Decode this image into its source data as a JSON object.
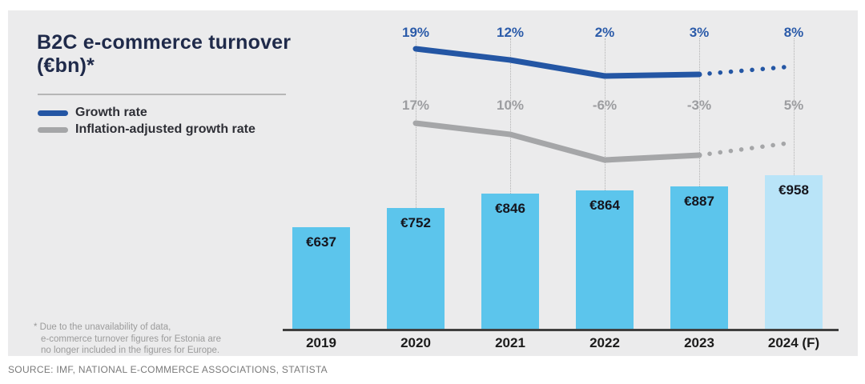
{
  "title": "B2C e-commerce turnover\n(€bn)*",
  "footnote": "* Due to the unavailability of data,\ne-commerce turnover figures for Estonia are\nno longer included in the figures for Europe.",
  "source": "SOURCE: IMF, NATIONAL E-COMMERCE ASSOCIATIONS, STATISTA",
  "colors": {
    "card_bg": "#ebebec",
    "title": "#1f2a4a",
    "growth_line": "#2456a4",
    "inflation_line": "#a5a6a8",
    "growth_label": "#2b5ba9",
    "inflation_label": "#9c9da0",
    "bar": "#5cc5ec",
    "bar_forecast": "#b9e4f8",
    "bar_value_label": "#15151d",
    "axis": "#3f3f3f",
    "gridline": "#b2b2b2"
  },
  "chart_data": {
    "type": "bar",
    "subtype": "bar + line combo, 2024 values are forecast (dotted line segment, lighter bar)",
    "title": "B2C e-commerce turnover (€bn)*",
    "categories": [
      "2019",
      "2020",
      "2021",
      "2022",
      "2023",
      "2024 (F)"
    ],
    "bars": {
      "name": "B2C e-commerce turnover",
      "unit": "€bn",
      "values": [
        637,
        752,
        846,
        864,
        887,
        958
      ],
      "labels": [
        "€637",
        "€752",
        "€846",
        "€864",
        "€887",
        "€958"
      ],
      "forecast_index": 5
    },
    "line_series": [
      {
        "name": "Growth rate",
        "values_pct": [
          null,
          19,
          12,
          2,
          3,
          8
        ],
        "labels": [
          null,
          "19%",
          "12%",
          "2%",
          "3%",
          "8%"
        ]
      },
      {
        "name": "Inflation-adjusted growth rate",
        "values_pct": [
          null,
          17,
          10,
          -6,
          -3,
          5
        ],
        "labels": [
          null,
          "17%",
          "10%",
          "-6%",
          "-3%",
          "5%"
        ]
      }
    ],
    "legend_position": "top-left",
    "grid": "vertical dotted guides at 2020-2024"
  }
}
